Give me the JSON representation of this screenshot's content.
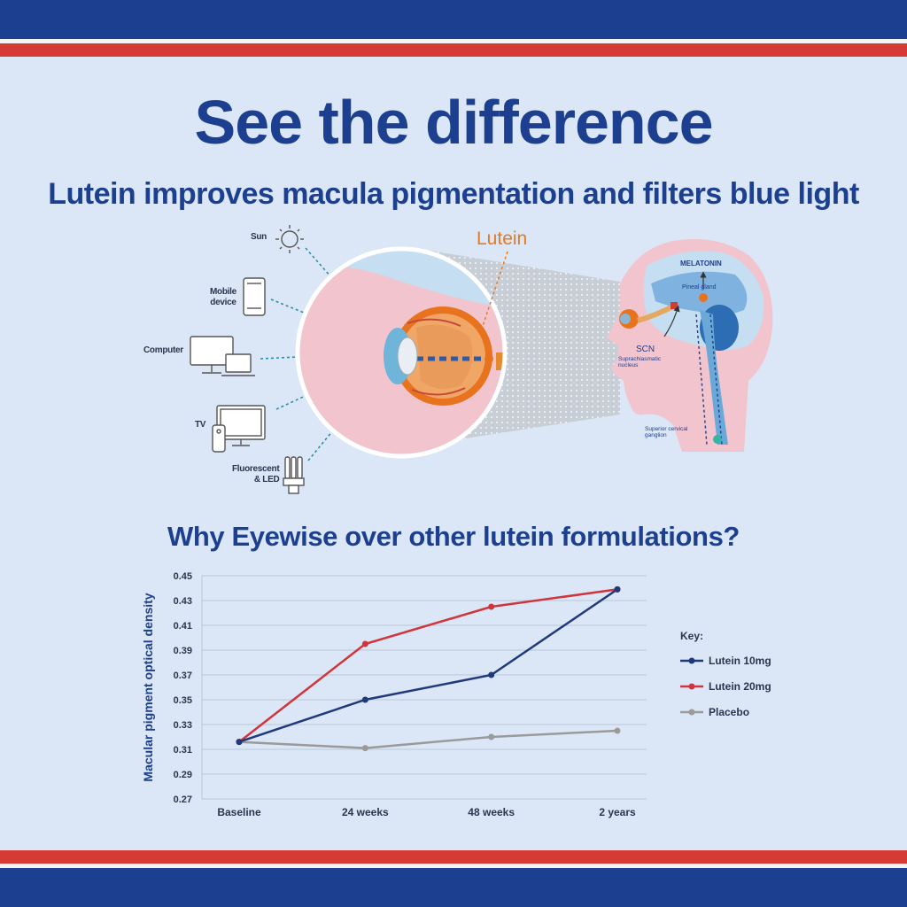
{
  "header": {
    "title": "See the difference",
    "subtitle": "Lutein improves macula pigmentation and filters blue light"
  },
  "colors": {
    "navy": "#1c3f8f",
    "red": "#d63a35",
    "background": "#dbe7f6",
    "orange": "#e07a25"
  },
  "illustration": {
    "sources": [
      {
        "label": "Sun",
        "icon": "sun-icon"
      },
      {
        "label": "Mobile\ndevice",
        "icon": "mobile-icon"
      },
      {
        "label": "Computer",
        "icon": "computer-icon"
      },
      {
        "label": "TV",
        "icon": "tv-icon"
      },
      {
        "label": "Fluorescent\n& LED",
        "icon": "bulb-icon"
      }
    ],
    "lutein_label": "Lutein",
    "brain_labels": {
      "melatonin": "MELATONIN",
      "pineal": "Pineal gland",
      "scn": "SCN",
      "scn_full": "Suprachiasmatic\nnucleus",
      "ganglion": "Superior cervical\nganglion"
    }
  },
  "chart_heading": "Why Eyewise over other lutein formulations?",
  "chart_data": {
    "type": "line",
    "title": "",
    "xlabel": "",
    "ylabel": "Macular pigment optical density",
    "categories": [
      "Baseline",
      "24 weeks",
      "48 weeks",
      "2 years"
    ],
    "ylim": [
      0.27,
      0.45
    ],
    "yticks": [
      "0.27",
      "0.29",
      "0.31",
      "0.33",
      "0.35",
      "0.37",
      "0.39",
      "0.41",
      "0.43",
      "0.45"
    ],
    "grid": true,
    "legend_title": "Key:",
    "legend_position": "right",
    "series": [
      {
        "name": "Lutein 10mg",
        "color": "#1f3a7a",
        "values": [
          0.316,
          0.35,
          0.37,
          0.439
        ]
      },
      {
        "name": "Lutein 20mg",
        "color": "#d0343c",
        "values": [
          0.316,
          0.395,
          0.425,
          0.439
        ]
      },
      {
        "name": "Placebo",
        "color": "#9a9a9a",
        "values": [
          0.316,
          0.311,
          0.32,
          0.325
        ]
      }
    ]
  }
}
